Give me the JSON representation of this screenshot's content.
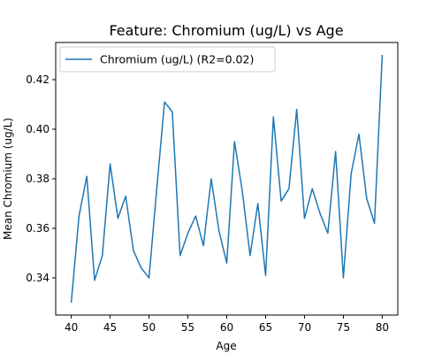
{
  "chart_data": {
    "type": "line",
    "title": "Feature: Chromium (ug/L) vs Age",
    "xlabel": "Age",
    "ylabel": "Mean Chromium (ug/L)",
    "xlim": [
      38,
      82
    ],
    "ylim": [
      0.325,
      0.435
    ],
    "xticks": [
      40,
      45,
      50,
      55,
      60,
      65,
      70,
      75,
      80
    ],
    "yticks": [
      0.34,
      0.36,
      0.38,
      0.4,
      0.42
    ],
    "ytick_labels": [
      "0.34",
      "0.36",
      "0.38",
      "0.40",
      "0.42"
    ],
    "grid": false,
    "legend_position": "top-left",
    "series": [
      {
        "name": "Chromium (ug/L) (R2=0.02)",
        "color": "#1f77b4",
        "x": [
          40,
          41,
          42,
          43,
          44,
          45,
          46,
          47,
          48,
          49,
          50,
          51,
          52,
          53,
          54,
          55,
          56,
          57,
          58,
          59,
          60,
          61,
          62,
          63,
          64,
          65,
          66,
          67,
          68,
          69,
          70,
          71,
          72,
          73,
          74,
          75,
          76,
          77,
          78,
          79,
          80
        ],
        "y": [
          0.33,
          0.365,
          0.381,
          0.339,
          0.349,
          0.386,
          0.364,
          0.373,
          0.351,
          0.344,
          0.34,
          0.376,
          0.411,
          0.407,
          0.349,
          0.358,
          0.365,
          0.353,
          0.38,
          0.359,
          0.346,
          0.395,
          0.375,
          0.349,
          0.37,
          0.341,
          0.405,
          0.371,
          0.376,
          0.408,
          0.364,
          0.376,
          0.366,
          0.358,
          0.391,
          0.34,
          0.382,
          0.398,
          0.372,
          0.362,
          0.43
        ]
      }
    ]
  }
}
